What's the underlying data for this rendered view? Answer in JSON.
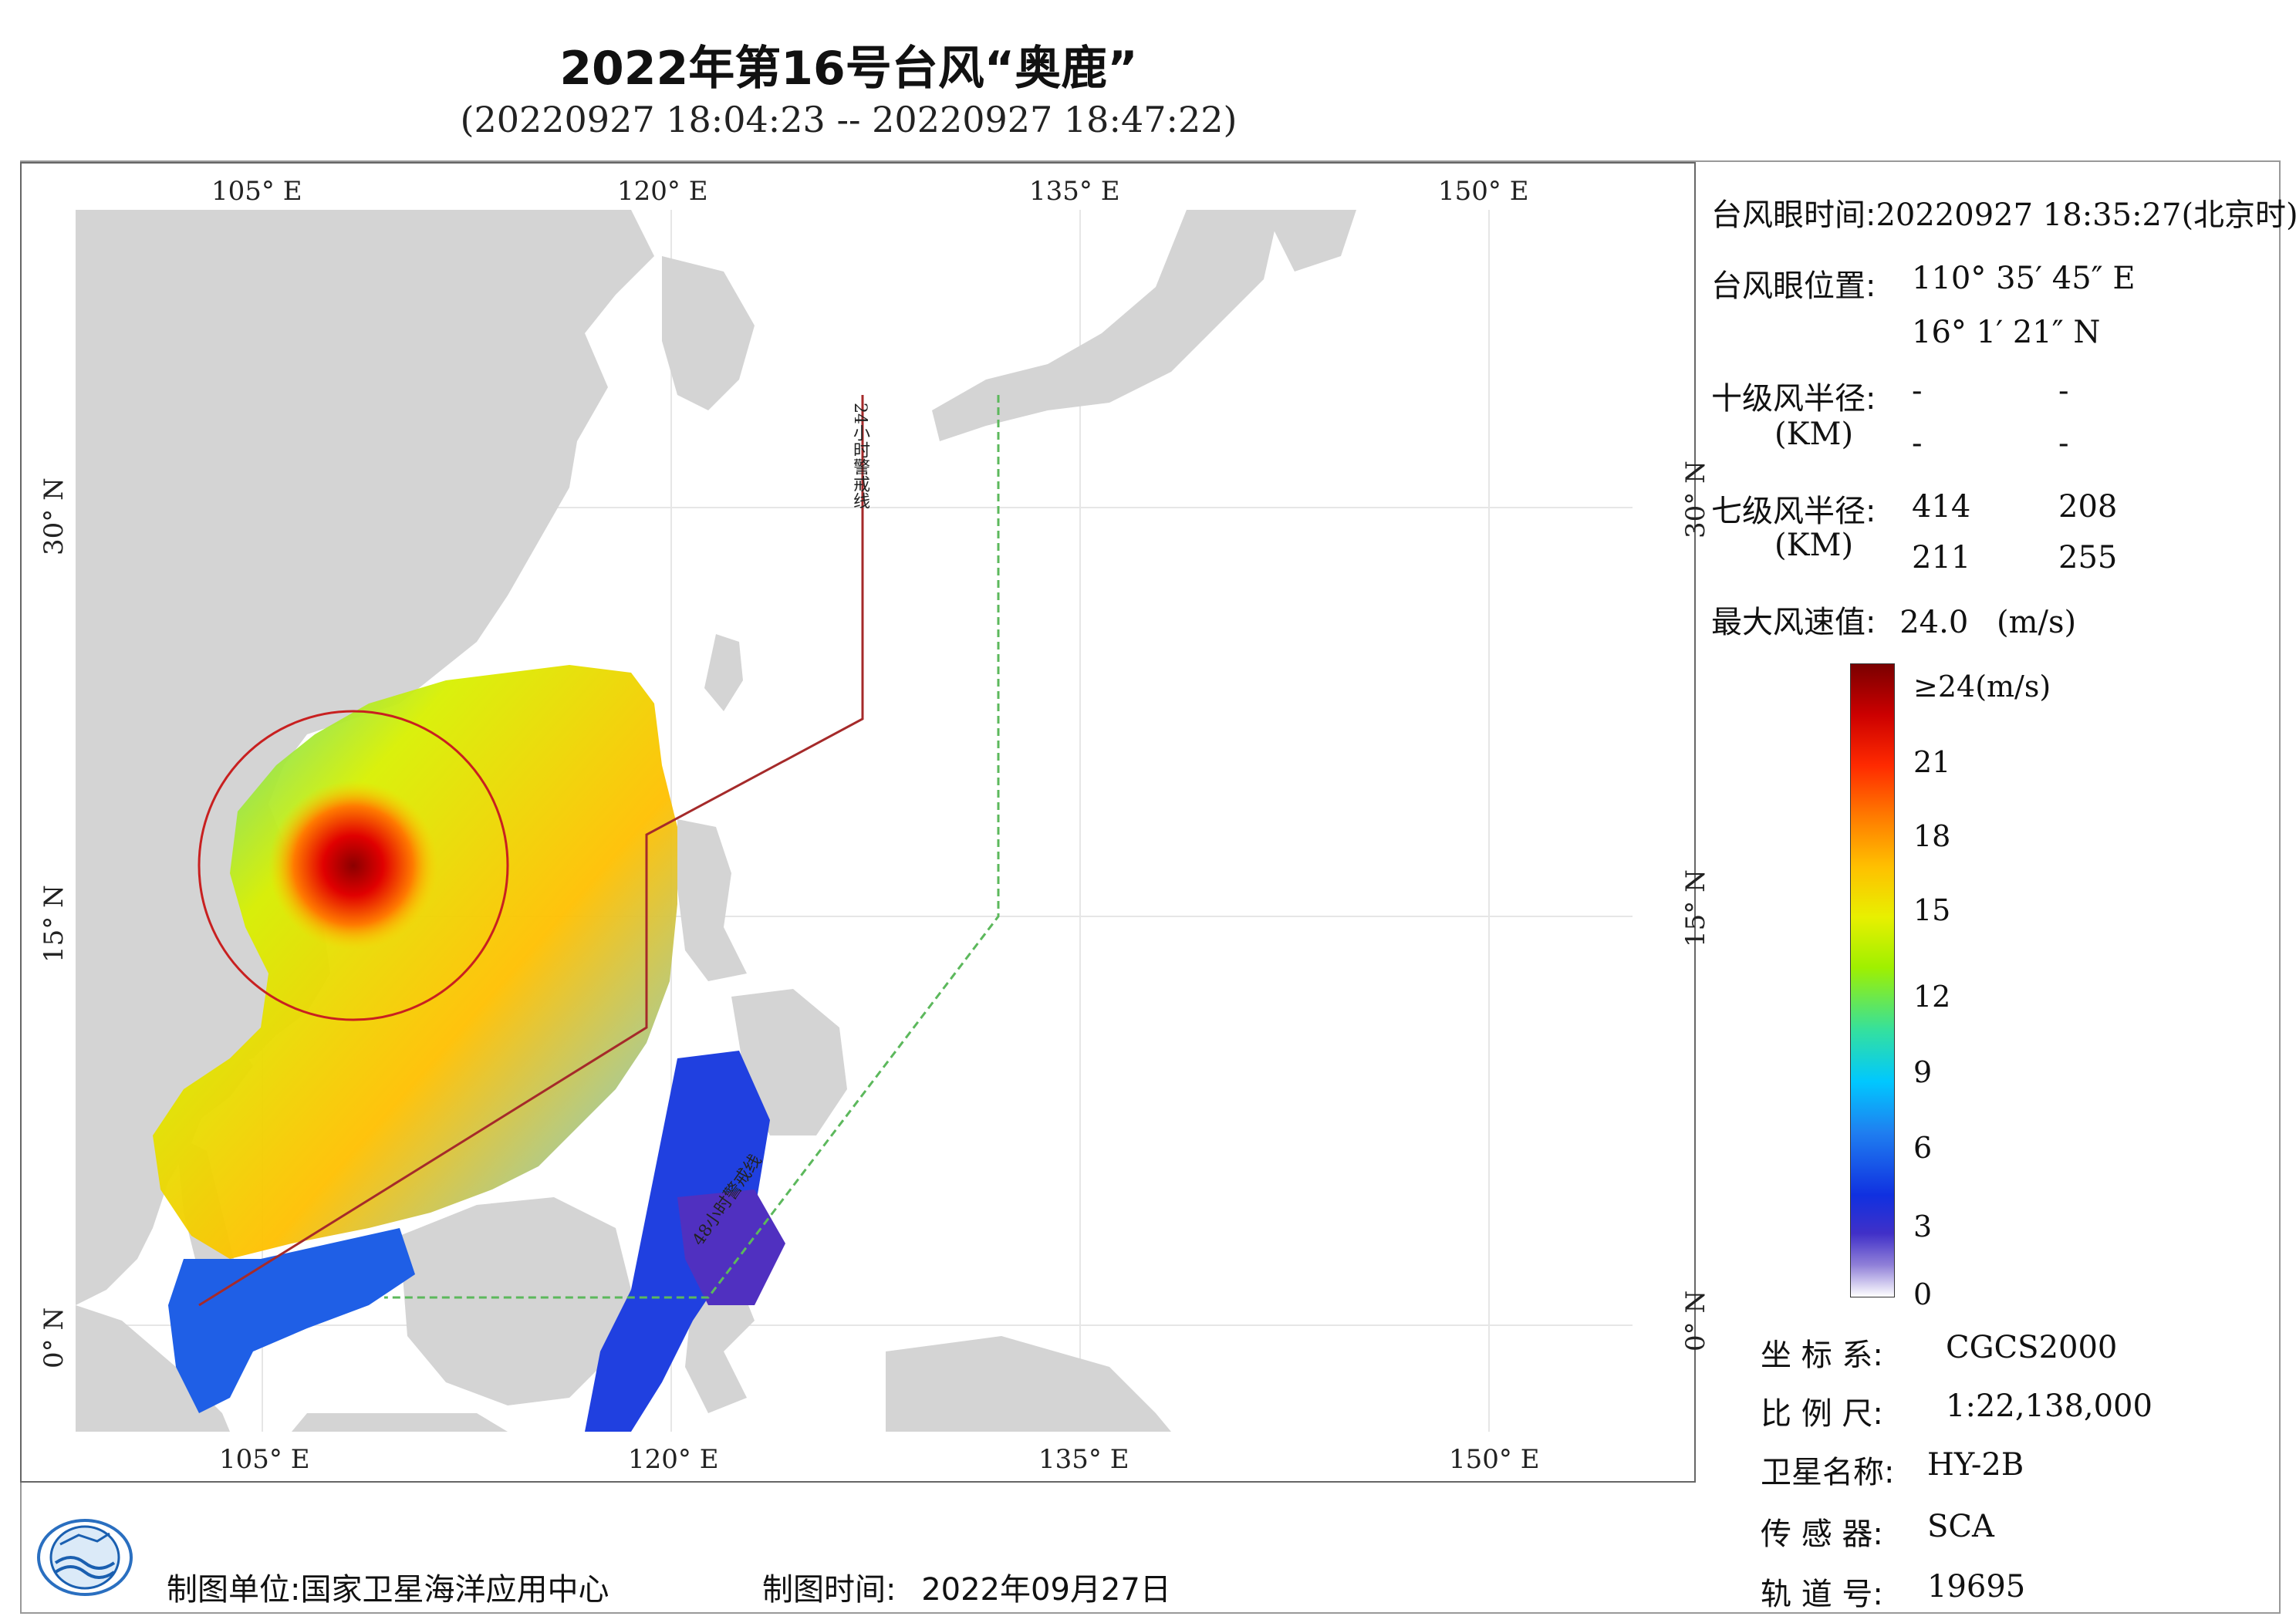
{
  "title": "2022年第16号台风“奥鹿”",
  "subtitle": "(20220927 18:04:23 -- 20220927 18:47:22)",
  "map": {
    "top_longitude_ticks": [
      "105° E",
      "120° E",
      "135° E",
      "150° E"
    ],
    "bottom_longitude_ticks": [
      "105° E",
      "120° E",
      "135° E",
      "150° E"
    ],
    "left_latitude_ticks": [
      "30° N",
      "15° N",
      "0° N"
    ],
    "right_latitude_ticks": [
      "30° N",
      "15° N",
      "0° N"
    ],
    "warning_line_24h": "24小时警戒线",
    "warning_line_48h": "48小时警戒线",
    "land_color": "#d4d4d4",
    "sea_color": "#ffffff",
    "line_24h_color": "#a52a2a",
    "line_48h_color": "#5cb85c"
  },
  "info": {
    "eye_time_label": "台风眼时间:",
    "eye_time_value": "20220927 18:35:27(北京时)",
    "eye_pos_label": "台风眼位置:",
    "eye_lon": "110° 35′ 45″ E",
    "eye_lat": "16° 1′ 21″ N",
    "r10_label": "十级风半径:",
    "r10_unit": "(KM)",
    "r10_values": [
      "-",
      "-",
      "-",
      "-"
    ],
    "r7_label": "七级风半径:",
    "r7_unit": "(KM)",
    "r7_values": [
      "414",
      "208",
      "211",
      "255"
    ],
    "max_wind_label": "最大风速值:",
    "max_wind_value": "24.0",
    "max_wind_unit": "(m/s)"
  },
  "colorbar": {
    "labels": [
      "≥24(m/s)",
      "21",
      "18",
      "15",
      "12",
      "9",
      "6",
      "3",
      "0"
    ]
  },
  "meta": {
    "crs_label": "坐 标 系:",
    "crs_value": "CGCS2000",
    "scale_label": "比 例 尺:",
    "scale_value": "1:22,138,000",
    "satellite_label": "卫星名称:",
    "satellite_value": "HY-2B",
    "sensor_label": "传 感 器:",
    "sensor_value": "SCA",
    "orbit_label": "轨 道 号:",
    "orbit_value": "19695"
  },
  "footer": {
    "maker_label": "制图单位:",
    "maker_value": "国家卫星海洋应用中心",
    "date_label": "制图时间:",
    "date_value": "2022年09月27日"
  }
}
